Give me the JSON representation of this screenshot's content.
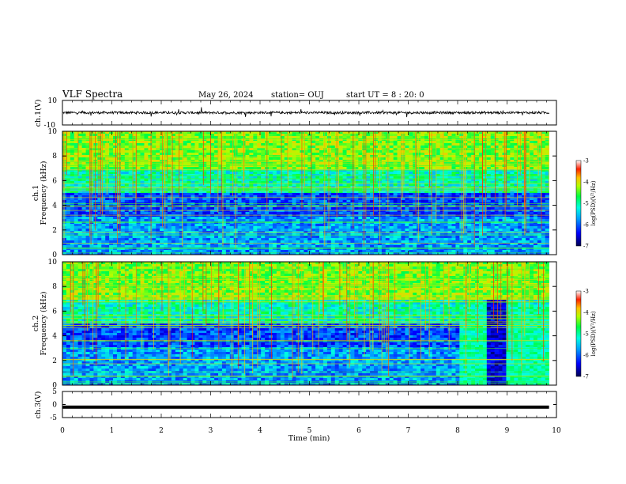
{
  "header": {
    "title": "VLF Spectra",
    "date": "May 26, 2024",
    "station": "station= OUJ",
    "start_ut": "start  UT =   8 : 20: 0"
  },
  "colors": {
    "axis": "#000000",
    "background": "#ffffff",
    "colormap": [
      "#000000",
      "#00008b",
      "#0000ff",
      "#00bfff",
      "#00ffff",
      "#00ff7f",
      "#7fff00",
      "#ffff00",
      "#ff7f00",
      "#ff0000",
      "#ffffff"
    ]
  },
  "chart_data": [
    {
      "type": "line",
      "name": "ch1-waveform",
      "ylabel": "ch.1(V)",
      "ylim": [
        -10,
        10
      ],
      "yticks": [
        "10",
        "-10"
      ],
      "baseline_value": 0,
      "approx_amplitude": 2,
      "xlim": [
        0,
        10
      ],
      "data_end_min": 9.85
    },
    {
      "type": "heatmap",
      "name": "ch1-spectrogram",
      "ylabel_line1": "ch.1",
      "ylabel_line2": "Frequency (kHz)",
      "ylim": [
        0,
        10
      ],
      "yticks": [
        "0",
        "2",
        "4",
        "6",
        "8",
        "10"
      ],
      "xlim": [
        0,
        10
      ],
      "colorbar": {
        "label": "log(PSD)(V²/Hz)",
        "range": [
          -7,
          -3
        ],
        "ticks": [
          "-3",
          "-4",
          "-5",
          "-6",
          "-7"
        ]
      }
    },
    {
      "type": "heatmap",
      "name": "ch2-spectrogram",
      "ylabel_line1": "ch.2",
      "ylabel_line2": "Frequency (kHz)",
      "ylim": [
        0,
        10
      ],
      "yticks": [
        "0",
        "2",
        "4",
        "6",
        "8",
        "10"
      ],
      "xlim": [
        0,
        10
      ],
      "colorbar": {
        "label": "log(PSD)(V²/Hz)",
        "range": [
          -7,
          -3
        ],
        "ticks": [
          "-3",
          "-4",
          "-5",
          "-6",
          "-7"
        ]
      }
    },
    {
      "type": "line",
      "name": "ch3-waveform",
      "ylabel": "ch.3(V)",
      "ylim": [
        -5,
        5
      ],
      "yticks": [
        "5",
        "0",
        "-5"
      ],
      "baseline_value": -1,
      "xlim": [
        0,
        10
      ],
      "data_end_min": 9.85
    }
  ],
  "xaxis": {
    "label": "Time (min)",
    "ticks": [
      "0",
      "1",
      "2",
      "3",
      "4",
      "5",
      "6",
      "7",
      "8",
      "9",
      "10"
    ],
    "range": [
      0,
      10
    ]
  }
}
